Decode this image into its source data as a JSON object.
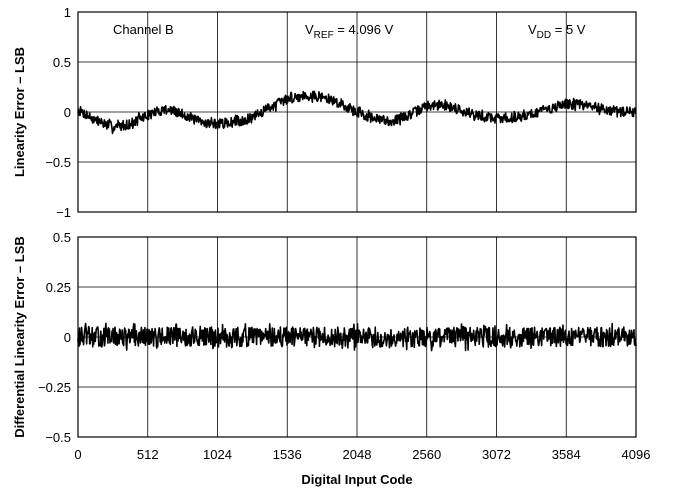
{
  "chart_data": [
    {
      "type": "line",
      "ylabel": "Linearity Error – LSB",
      "xlim": [
        0,
        4096
      ],
      "ylim": [
        -1,
        1
      ],
      "x_ticks": [
        "0",
        "512",
        "1024",
        "1536",
        "2048",
        "2560",
        "3072",
        "3584",
        "4096"
      ],
      "y_ticks": [
        "1",
        "0.5",
        "0",
        "−0.5",
        "−1"
      ],
      "grid": true,
      "annotations": {
        "channel": "Channel B",
        "vref_main": "V",
        "vref_sub": "REF",
        "vref_value": " = 4.096 V",
        "vdd_main": "V",
        "vdd_sub": "DD",
        "vdd_value": " = 5 V"
      },
      "series": [
        {
          "x": [
            0,
            128,
            256,
            384,
            512,
            640,
            768,
            896,
            1024,
            1152,
            1280,
            1408,
            1536,
            1664,
            1792,
            1920,
            2048,
            2176,
            2304,
            2432,
            2560,
            2688,
            2816,
            2944,
            3072,
            3200,
            3328,
            3456,
            3584,
            3712,
            3840,
            3968,
            4096
          ],
          "y": [
            0.02,
            -0.08,
            -0.15,
            -0.12,
            -0.03,
            0.03,
            -0.02,
            -0.1,
            -0.12,
            -0.1,
            -0.06,
            0.05,
            0.13,
            0.17,
            0.15,
            0.09,
            0.0,
            -0.07,
            -0.09,
            -0.03,
            0.06,
            0.07,
            0.02,
            -0.04,
            -0.06,
            -0.06,
            -0.02,
            0.03,
            0.08,
            0.07,
            0.04,
            0.0,
            0.0
          ],
          "noise_band": 0.05
        }
      ]
    },
    {
      "type": "line",
      "ylabel": "Differential Linearity Error – LSB",
      "xlabel": "Digital Input Code",
      "xlim": [
        0,
        4096
      ],
      "ylim": [
        -0.5,
        0.5
      ],
      "x_ticks": [
        "0",
        "512",
        "1024",
        "1536",
        "2048",
        "2560",
        "3072",
        "3584",
        "4096"
      ],
      "y_ticks": [
        "0.5",
        "0.25",
        "0",
        "−0.25",
        "−0.5"
      ],
      "grid": true,
      "series": [
        {
          "x": [
            0,
            4096
          ],
          "y": [
            0.0,
            0.0
          ],
          "noise_band": 0.05
        }
      ]
    }
  ]
}
